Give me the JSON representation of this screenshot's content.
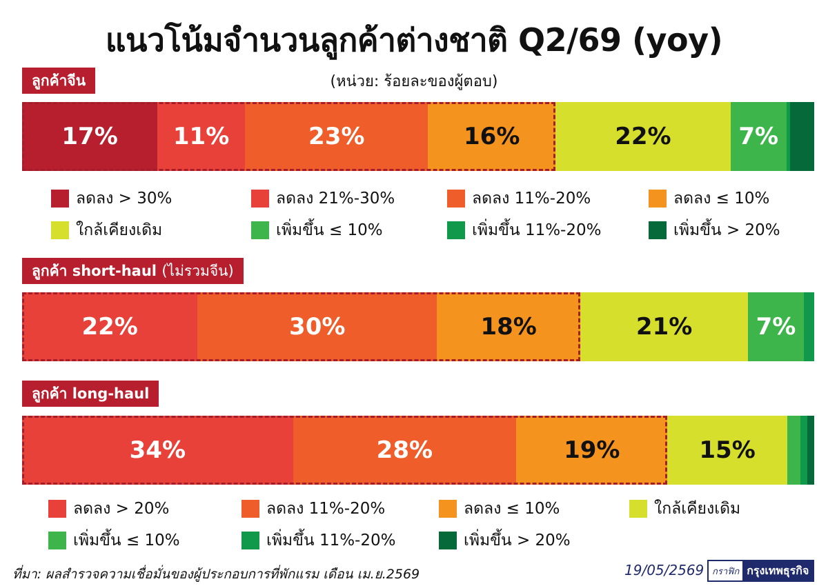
{
  "title": "แนวโน้มจำนวนลูกค้าต่างชาติ Q2/69 (yoy)",
  "subtitle": "(หน่วย: ร้อยละของผู้ตอบ)",
  "colors": {
    "dec_gt30": "#b71f2e",
    "dec_21_30": "#e8413a",
    "dec_11_20": "#ee5d2a",
    "dec_le10": "#f5931f",
    "same": "#d6e02c",
    "inc_le10": "#3db54a",
    "inc_11_20": "#10994a",
    "inc_gt20": "#05693a",
    "highlight_border": "#a31d2b"
  },
  "chart_data": [
    {
      "type": "bar",
      "orientation": "horizontal-stacked-100",
      "title": "ลูกค้าจีน",
      "series": [
        {
          "name": "ลดลง > 30%",
          "value": 17,
          "label": "17%",
          "color": "#b71f2e",
          "text": "light"
        },
        {
          "name": "ลดลง 21%-30%",
          "value": 11,
          "label": "11%",
          "color": "#e8413a",
          "text": "light"
        },
        {
          "name": "ลดลง 11%-20%",
          "value": 23,
          "label": "23%",
          "color": "#ee5d2a",
          "text": "light"
        },
        {
          "name": "ลดลง < 10%",
          "value": 16,
          "label": "16%",
          "color": "#f5931f",
          "text": "dark"
        },
        {
          "name": "ใกล้เคียงเดิม",
          "value": 22,
          "label": "22%",
          "color": "#d6e02c",
          "text": "dark"
        },
        {
          "name": "เพิ่มขึ้น < 10%",
          "value": 7,
          "label": "7%",
          "color": "#3db54a",
          "text": "light"
        },
        {
          "name": "เพิ่มขึ้น 11%-20%",
          "value": 0.5,
          "label": "",
          "color": "#10994a",
          "text": "light"
        },
        {
          "name": "เพิ่มขึ้น > 20%",
          "value": 3,
          "label": "",
          "color": "#05693a",
          "text": "light"
        }
      ],
      "highlight_segments": 4
    },
    {
      "type": "bar",
      "orientation": "horizontal-stacked-100",
      "title": "ลูกค้า short-haul (ไม่รวมจีน)",
      "series": [
        {
          "name": "ลดลง > 20%",
          "value": 22,
          "label": "22%",
          "color": "#e8413a",
          "text": "light"
        },
        {
          "name": "ลดลง 11%-20%",
          "value": 30,
          "label": "30%",
          "color": "#ee5d2a",
          "text": "light"
        },
        {
          "name": "ลดลง < 10%",
          "value": 18,
          "label": "18%",
          "color": "#f5931f",
          "text": "dark"
        },
        {
          "name": "ใกล้เคียงเดิม",
          "value": 21,
          "label": "21%",
          "color": "#d6e02c",
          "text": "dark"
        },
        {
          "name": "เพิ่มขึ้น < 10%",
          "value": 7,
          "label": "7%",
          "color": "#3db54a",
          "text": "light"
        },
        {
          "name": "เพิ่มขึ้น 11%-20%",
          "value": 1.3,
          "label": "",
          "color": "#10994a",
          "text": "light"
        }
      ],
      "highlight_segments": 3
    },
    {
      "type": "bar",
      "orientation": "horizontal-stacked-100",
      "title": "ลูกค้า long-haul",
      "series": [
        {
          "name": "ลดลง > 20%",
          "value": 34,
          "label": "34%",
          "color": "#e8413a",
          "text": "light"
        },
        {
          "name": "ลดลง 11%-20%",
          "value": 28,
          "label": "28%",
          "color": "#ee5d2a",
          "text": "light"
        },
        {
          "name": "ลดลง < 10%",
          "value": 19,
          "label": "19%",
          "color": "#f5931f",
          "text": "dark"
        },
        {
          "name": "ใกล้เคียงเดิม",
          "value": 15,
          "label": "15%",
          "color": "#d6e02c",
          "text": "dark"
        },
        {
          "name": "เพิ่มขึ้น < 10%",
          "value": 1.7,
          "label": "",
          "color": "#3db54a",
          "text": "light"
        },
        {
          "name": "เพิ่มขึ้น 11%-20%",
          "value": 0.8,
          "label": "",
          "color": "#10994a",
          "text": "light"
        },
        {
          "name": "เพิ่มขึ้น > 20%",
          "value": 0.9,
          "label": "",
          "color": "#05693a",
          "text": "light"
        }
      ],
      "highlight_segments": 3
    }
  ],
  "sections": {
    "china_label": "ลูกค้าจีน",
    "short_label_bold": "ลูกค้า short-haul",
    "short_label_light": "(ไม่รวมจีน)",
    "long_label": "ลูกค้า long-haul"
  },
  "legend1": [
    {
      "text": "ลดลง > 30%",
      "color": "#b71f2e"
    },
    {
      "text": "ลดลง 21%-30%",
      "color": "#e8413a"
    },
    {
      "text": "ลดลง 11%-20%",
      "color": "#ee5d2a"
    },
    {
      "text": "ลดลง ≤ 10%",
      "color": "#f5931f"
    },
    {
      "text": "ใกล้เคียงเดิม",
      "color": "#d6e02c"
    },
    {
      "text": "เพิ่มขึ้น ≤ 10%",
      "color": "#3db54a"
    },
    {
      "text": "เพิ่มขึ้น 11%-20%",
      "color": "#10994a"
    },
    {
      "text": "เพิ่มขึ้น > 20%",
      "color": "#05693a"
    }
  ],
  "legend2": [
    {
      "text": "ลดลง > 20%",
      "color": "#e8413a"
    },
    {
      "text": "ลดลง 11%-20%",
      "color": "#ee5d2a"
    },
    {
      "text": "ลดลง ≤ 10%",
      "color": "#f5931f"
    },
    {
      "text": "ใกล้เคียงเดิม",
      "color": "#d6e02c"
    },
    {
      "text": "เพิ่มขึ้น ≤ 10%",
      "color": "#3db54a"
    },
    {
      "text": "เพิ่มขึ้น 11%-20%",
      "color": "#10994a"
    },
    {
      "text": "เพิ่มขึ้น > 20%",
      "color": "#05693a"
    }
  ],
  "footer": {
    "source": "ที่มา: ผลสำรวจความเชื่อมั่นของผู้ประกอบการที่พักแรม เดือน เม.ย.2569",
    "date": "19/05/2569",
    "brand_a": "กราฟิก",
    "brand_b": "กรุงเทพธุรกิจ"
  }
}
